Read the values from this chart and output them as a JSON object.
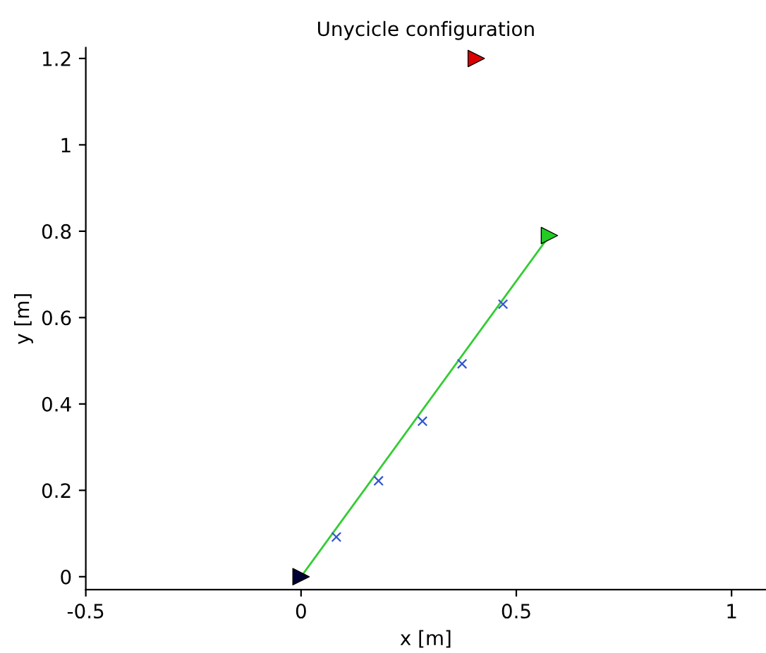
{
  "chart_data": {
    "type": "scatter",
    "title": "Unycicle configuration",
    "xlabel": "x [m]",
    "ylabel": "y [m]",
    "xlim": [
      -0.5,
      1.08
    ],
    "ylim": [
      -0.03,
      1.225
    ],
    "xticks": [
      -0.5,
      0,
      0.5,
      1
    ],
    "yticks": [
      0,
      0.2,
      0.4,
      0.6,
      0.8,
      1,
      1.2
    ],
    "grid": false,
    "series": [
      {
        "type": "line",
        "color": "#33cc33",
        "x": [
          0,
          0.577
        ],
        "values": [
          0,
          0.79
        ],
        "line_style": "solid"
      },
      {
        "color": "#3355cc",
        "x": [
          0.082,
          0.18,
          0.282,
          0.374,
          0.469
        ],
        "values": [
          0.092,
          0.222,
          0.36,
          0.493,
          0.631
        ],
        "marker": "cross"
      },
      {
        "color": "#000033",
        "x": [
          0
        ],
        "values": [
          0
        ],
        "marker": "triangle"
      },
      {
        "color": "#dd0000",
        "x": [
          0.407
        ],
        "values": [
          1.2
        ],
        "marker": "triangle"
      },
      {
        "color": "#22cc22",
        "x": [
          0.577
        ],
        "values": [
          0.79
        ],
        "marker": "triangle"
      }
    ]
  }
}
